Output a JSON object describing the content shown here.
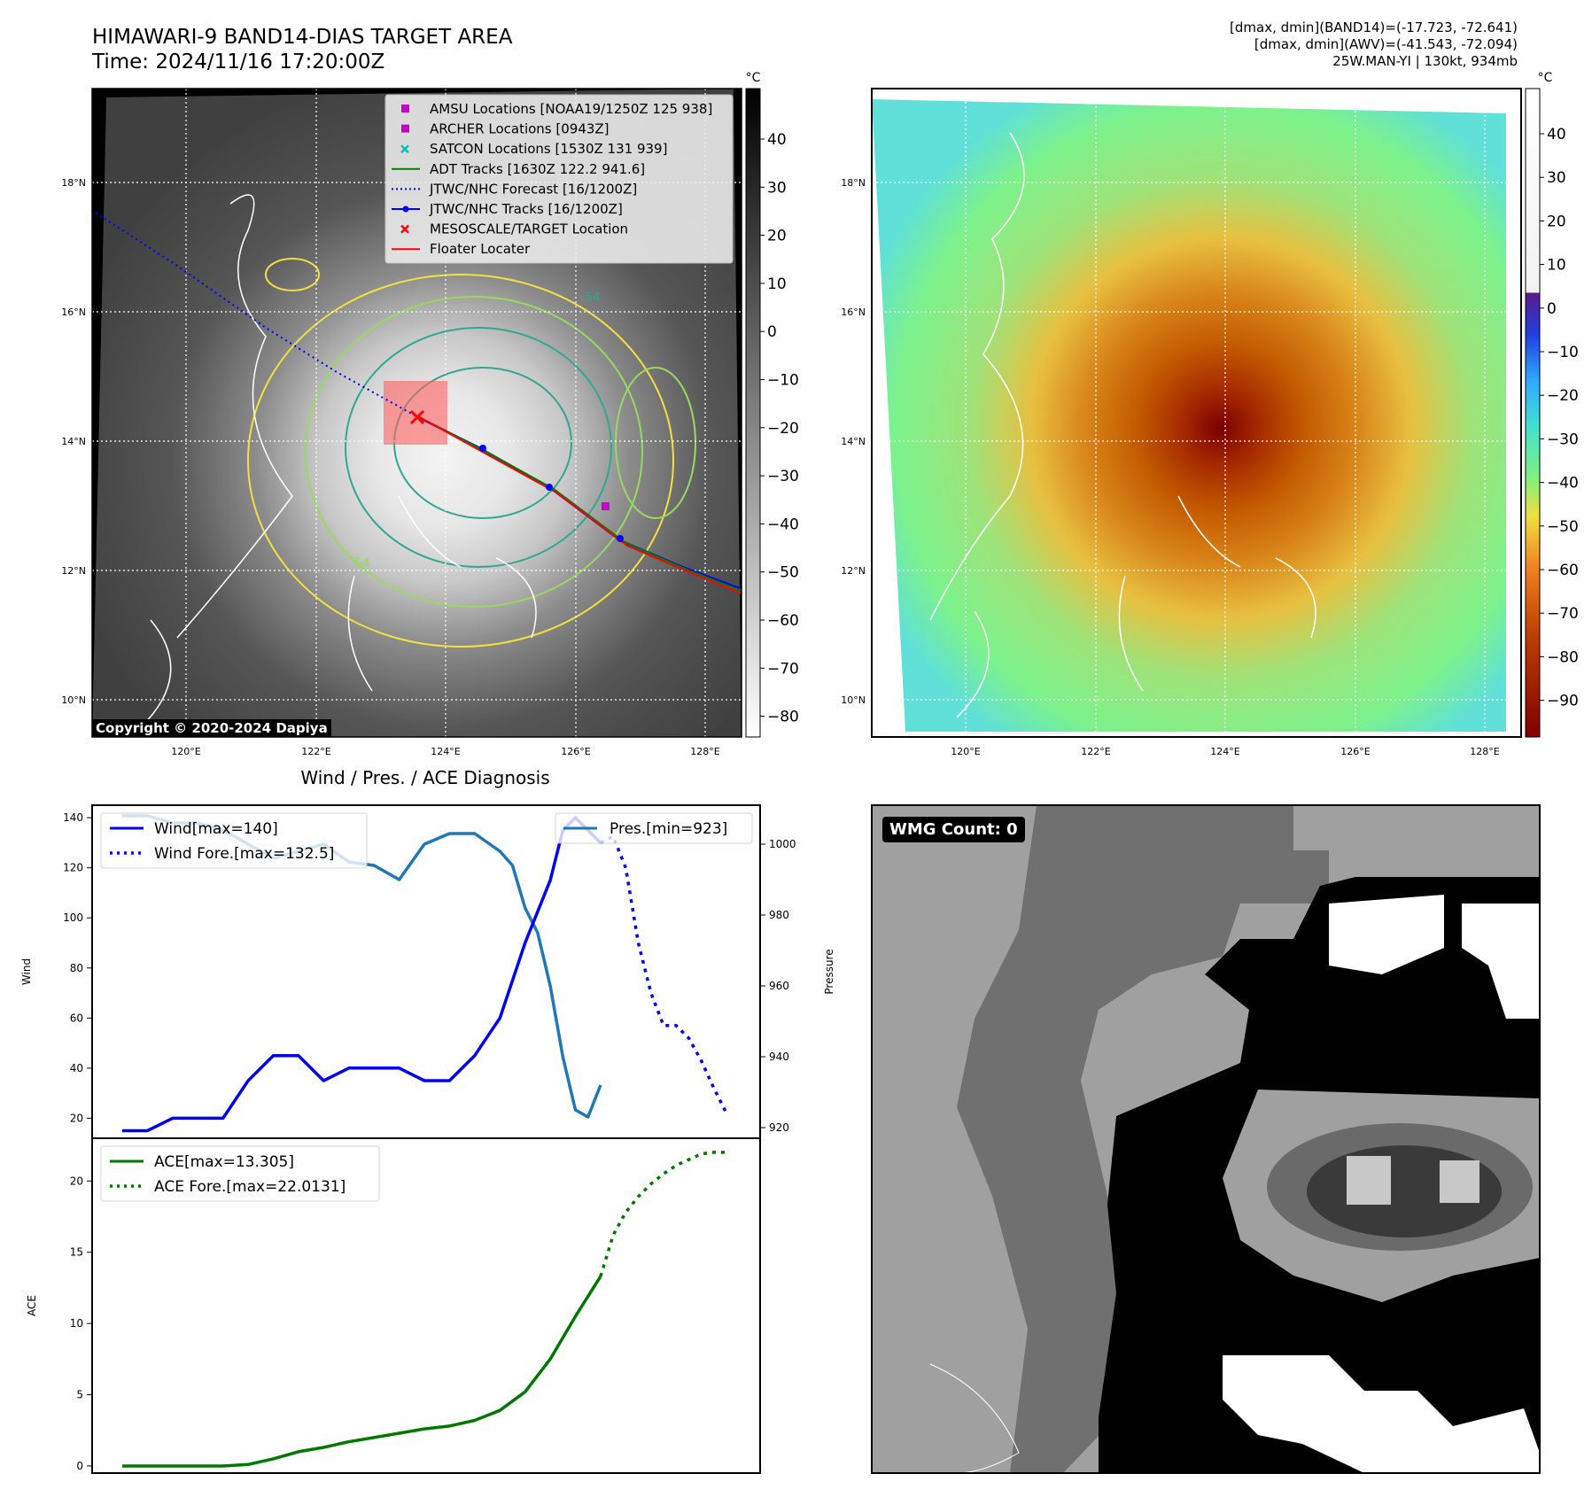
{
  "header": {
    "title": "HIMAWARI-9 BAND14-DIAS TARGET AREA",
    "time": "Time: 2024/11/16 17:20:00Z",
    "dmax_band14": "[dmax, dmin](BAND14)=(-17.723, -72.641)",
    "dmax_awv": "[dmax, dmin](AWV)=(-41.543, -72.094)",
    "storm": "25W.MAN-YI | 130kt, 934mb"
  },
  "map": {
    "lat_labels": [
      "18°N",
      "16°N",
      "14°N",
      "12°N",
      "10°N"
    ],
    "lon_labels": [
      "120°E",
      "122°E",
      "124°E",
      "126°E",
      "128°E"
    ],
    "copyright": "Copyright © 2020-2024 Dapiya",
    "contour_label": "-54",
    "unit": "°C",
    "gray_colorbar_ticks": [
      "40",
      "30",
      "20",
      "10",
      "0",
      "−10",
      "−20",
      "−30",
      "−40",
      "−50",
      "−60",
      "−70",
      "−80"
    ],
    "color_colorbar_ticks": [
      "40",
      "30",
      "20",
      "10",
      "0",
      "−10",
      "−20",
      "−30",
      "−40",
      "−50",
      "−60",
      "−70",
      "−80",
      "−90"
    ],
    "legend": [
      {
        "label": "AMSU Locations [NOAA19/1250Z 125 938]",
        "marker": "square",
        "color": "#cc00cc"
      },
      {
        "label": "ARCHER Locations [0943Z]",
        "marker": "square",
        "color": "#cc00cc"
      },
      {
        "label": "SATCON Locations [1530Z 131 939]",
        "marker": "x",
        "color": "#00bfbf"
      },
      {
        "label": "ADT Tracks [1630Z 122.2 941.6]",
        "marker": "line",
        "color": "#008000"
      },
      {
        "label": "JTWC/NHC Forecast [16/1200Z]",
        "marker": "dotted",
        "color": "#0000ff"
      },
      {
        "label": "JTWC/NHC Tracks [16/1200Z]",
        "marker": "line-dot",
        "color": "#0000ff"
      },
      {
        "label": "MESOSCALE/TARGET Location",
        "marker": "x",
        "color": "#ff0000"
      },
      {
        "label": "Floater Locater",
        "marker": "line",
        "color": "#ff0000"
      }
    ]
  },
  "diagnosis": {
    "title": "Wind / Pres. / ACE Diagnosis",
    "wind_axis_label": "Wind",
    "pressure_axis_label": "Pressure",
    "ace_axis_label": "ACE",
    "wind_legend": [
      "Wind[max=140]",
      "Wind Fore.[max=132.5]"
    ],
    "pres_legend": "Pres.[min=923]",
    "ace_legend": [
      "ACE[max=13.305]",
      "ACE Fore.[max=22.0131]"
    ]
  },
  "wmg": {
    "badge": "WMG Count: 0"
  },
  "colors": {
    "wind": "#0000ee",
    "pressure": "#1f77b4",
    "ace": "#007700"
  },
  "chart_data": [
    {
      "type": "line",
      "title": "Wind / Pres. / ACE Diagnosis",
      "ylabel": "Wind",
      "ylim": [
        12,
        145
      ],
      "yticks": [
        20,
        40,
        60,
        80,
        100,
        120,
        140
      ],
      "x_range": [
        0,
        24
      ],
      "series": [
        {
          "name": "Wind[max=140]",
          "style": "solid",
          "color": "#0000ee",
          "x": [
            0,
            1,
            2,
            3,
            4,
            5,
            6,
            7,
            8,
            9,
            10,
            11,
            12,
            13,
            14,
            15,
            16,
            17,
            17.5,
            18,
            18.5,
            19
          ],
          "values": [
            15,
            15,
            20,
            20,
            20,
            35,
            45,
            45,
            35,
            40,
            40,
            40,
            35,
            35,
            45,
            60,
            90,
            115,
            135,
            140,
            135,
            130
          ]
        },
        {
          "name": "Wind Fore.[max=132.5]",
          "style": "dotted",
          "color": "#0000ee",
          "x": [
            19,
            19.5,
            20,
            20.5,
            21,
            21.5,
            22,
            22.5,
            23,
            23.5,
            24
          ],
          "values": [
            130,
            132.5,
            120,
            90,
            70,
            57,
            57,
            52,
            43,
            32,
            22
          ]
        }
      ]
    },
    {
      "type": "line",
      "ylabel": "Pressure",
      "ylim": [
        917,
        1011
      ],
      "yticks": [
        920,
        940,
        960,
        980,
        1000
      ],
      "x_range": [
        0,
        24
      ],
      "series": [
        {
          "name": "Pres.[min=923]",
          "style": "solid",
          "color": "#1f77b4",
          "x": [
            0,
            1,
            2,
            3,
            4,
            5,
            6,
            7,
            8,
            9,
            10,
            11,
            12,
            13,
            14,
            15,
            15.5,
            16,
            16.5,
            17,
            17.5,
            18,
            18.5,
            19
          ],
          "values": [
            1008,
            1008,
            1006,
            1006,
            1004,
            1000,
            996,
            998,
            1000,
            995,
            994,
            990,
            1000,
            1003,
            1003,
            998,
            994,
            982,
            975,
            960,
            940,
            925,
            923,
            932
          ]
        }
      ]
    },
    {
      "type": "line",
      "ylabel": "ACE",
      "ylim": [
        -0.5,
        23
      ],
      "yticks": [
        0,
        5,
        10,
        15,
        20
      ],
      "x_range": [
        0,
        24
      ],
      "series": [
        {
          "name": "ACE[max=13.305]",
          "style": "solid",
          "color": "#007700",
          "x": [
            0,
            1,
            2,
            3,
            4,
            5,
            6,
            7,
            8,
            9,
            10,
            11,
            12,
            13,
            14,
            15,
            16,
            17,
            18,
            19
          ],
          "values": [
            0,
            0,
            0,
            0,
            0,
            0.1,
            0.5,
            1.0,
            1.3,
            1.7,
            2.0,
            2.3,
            2.6,
            2.8,
            3.2,
            3.9,
            5.2,
            7.5,
            10.5,
            13.305
          ]
        },
        {
          "name": "ACE Fore.[max=22.0131]",
          "style": "dotted",
          "color": "#007700",
          "x": [
            19,
            19.5,
            20,
            20.5,
            21,
            21.5,
            22,
            22.5,
            23,
            23.5,
            24
          ],
          "values": [
            13.305,
            16.2,
            17.8,
            18.9,
            19.8,
            20.5,
            21.1,
            21.5,
            21.9,
            22.0131,
            22.0131
          ]
        }
      ]
    }
  ]
}
